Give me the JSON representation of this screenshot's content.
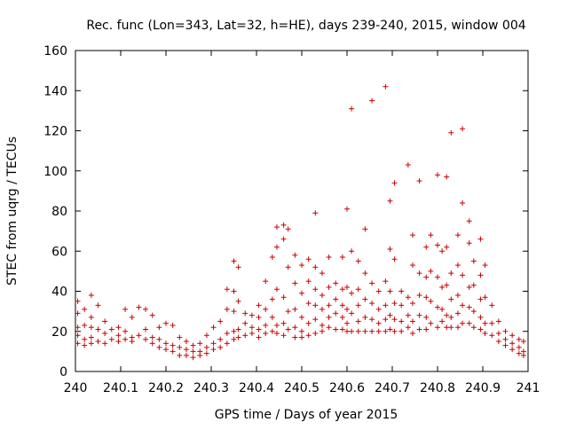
{
  "chart_data": {
    "type": "scatter",
    "title": "Rec. func (Lon=343, Lat=32, h=HE), days 239-240, 2015, window 004",
    "xlabel": "GPS time / Days of year 2015",
    "ylabel": "STEC from uqrg / TECUs",
    "xlim": [
      240,
      241
    ],
    "ylim": [
      0,
      160
    ],
    "xticks": [
      "240",
      "240.1",
      "240.2",
      "240.3",
      "240.4",
      "240.5",
      "240.6",
      "240.7",
      "240.8",
      "240.9",
      "241"
    ],
    "yticks": [
      "0",
      "20",
      "40",
      "60",
      "80",
      "100",
      "120",
      "140",
      "160"
    ],
    "grid": false,
    "marker": "plus",
    "color": "#cc0000",
    "series": [
      {
        "points": [
          [
            240.005,
            35
          ],
          [
            240.005,
            29
          ],
          [
            240.005,
            22
          ],
          [
            240.005,
            18
          ],
          [
            240.005,
            14
          ],
          [
            240.02,
            31
          ],
          [
            240.02,
            23
          ],
          [
            240.02,
            16
          ],
          [
            240.02,
            13
          ],
          [
            240.035,
            38
          ],
          [
            240.035,
            27
          ],
          [
            240.035,
            22
          ],
          [
            240.035,
            17
          ],
          [
            240.035,
            14
          ],
          [
            240.05,
            33
          ],
          [
            240.05,
            21
          ],
          [
            240.05,
            15
          ],
          [
            240.065,
            25
          ],
          [
            240.065,
            19
          ],
          [
            240.065,
            14
          ],
          [
            240.08,
            21
          ],
          [
            240.08,
            16
          ],
          [
            240.095,
            22
          ],
          [
            240.095,
            18
          ],
          [
            240.095,
            15
          ],
          [
            240.11,
            31
          ],
          [
            240.11,
            20
          ],
          [
            240.11,
            16
          ],
          [
            240.125,
            27
          ],
          [
            240.125,
            17
          ],
          [
            240.125,
            15
          ],
          [
            240.14,
            32
          ],
          [
            240.14,
            18
          ],
          [
            240.155,
            31
          ],
          [
            240.155,
            21
          ],
          [
            240.155,
            16
          ],
          [
            240.17,
            28
          ],
          [
            240.17,
            17
          ],
          [
            240.17,
            14
          ],
          [
            240.185,
            22
          ],
          [
            240.185,
            16
          ],
          [
            240.185,
            12
          ],
          [
            240.2,
            24
          ],
          [
            240.2,
            14
          ],
          [
            240.2,
            11
          ],
          [
            240.215,
            23
          ],
          [
            240.215,
            13
          ],
          [
            240.215,
            10
          ],
          [
            240.23,
            17
          ],
          [
            240.23,
            12
          ],
          [
            240.23,
            8
          ],
          [
            240.245,
            15
          ],
          [
            240.245,
            11
          ],
          [
            240.245,
            8
          ],
          [
            240.26,
            13
          ],
          [
            240.26,
            10
          ],
          [
            240.26,
            7
          ],
          [
            240.275,
            14
          ],
          [
            240.275,
            10
          ],
          [
            240.275,
            8
          ],
          [
            240.29,
            18
          ],
          [
            240.29,
            12
          ],
          [
            240.29,
            9
          ],
          [
            240.305,
            22
          ],
          [
            240.305,
            14
          ],
          [
            240.305,
            11
          ],
          [
            240.32,
            25
          ],
          [
            240.32,
            16
          ],
          [
            240.32,
            12
          ],
          [
            240.335,
            41
          ],
          [
            240.335,
            31
          ],
          [
            240.335,
            19
          ],
          [
            240.335,
            14
          ],
          [
            240.35,
            55
          ],
          [
            240.35,
            40
          ],
          [
            240.35,
            30
          ],
          [
            240.35,
            20
          ],
          [
            240.35,
            16
          ],
          [
            240.36,
            52
          ],
          [
            240.36,
            35
          ],
          [
            240.36,
            21
          ],
          [
            240.36,
            17
          ],
          [
            240.375,
            29
          ],
          [
            240.375,
            24
          ],
          [
            240.375,
            18
          ],
          [
            240.39,
            28
          ],
          [
            240.39,
            22
          ],
          [
            240.39,
            19
          ],
          [
            240.405,
            33
          ],
          [
            240.405,
            27
          ],
          [
            240.405,
            21
          ],
          [
            240.405,
            17
          ],
          [
            240.42,
            45
          ],
          [
            240.42,
            31
          ],
          [
            240.42,
            23
          ],
          [
            240.42,
            19
          ],
          [
            240.435,
            57
          ],
          [
            240.435,
            36
          ],
          [
            240.435,
            27
          ],
          [
            240.435,
            20
          ],
          [
            240.445,
            72
          ],
          [
            240.445,
            62
          ],
          [
            240.445,
            41
          ],
          [
            240.445,
            23
          ],
          [
            240.445,
            19
          ],
          [
            240.46,
            73
          ],
          [
            240.46,
            66
          ],
          [
            240.46,
            37
          ],
          [
            240.46,
            24
          ],
          [
            240.46,
            18
          ],
          [
            240.47,
            71
          ],
          [
            240.47,
            52
          ],
          [
            240.47,
            30
          ],
          [
            240.47,
            21
          ],
          [
            240.485,
            58
          ],
          [
            240.485,
            44
          ],
          [
            240.485,
            31
          ],
          [
            240.485,
            22
          ],
          [
            240.485,
            17
          ],
          [
            240.5,
            53
          ],
          [
            240.5,
            39
          ],
          [
            240.5,
            27
          ],
          [
            240.5,
            20
          ],
          [
            240.5,
            17
          ],
          [
            240.515,
            56
          ],
          [
            240.515,
            45
          ],
          [
            240.515,
            34
          ],
          [
            240.515,
            24
          ],
          [
            240.515,
            18
          ],
          [
            240.53,
            79
          ],
          [
            240.53,
            52
          ],
          [
            240.53,
            41
          ],
          [
            240.53,
            33
          ],
          [
            240.53,
            26
          ],
          [
            240.53,
            19
          ],
          [
            240.545,
            49
          ],
          [
            240.545,
            38
          ],
          [
            240.545,
            31
          ],
          [
            240.545,
            23
          ],
          [
            240.545,
            20
          ],
          [
            240.56,
            57
          ],
          [
            240.56,
            42
          ],
          [
            240.56,
            33
          ],
          [
            240.56,
            27
          ],
          [
            240.56,
            22
          ],
          [
            240.575,
            44
          ],
          [
            240.575,
            36
          ],
          [
            240.575,
            29
          ],
          [
            240.575,
            21
          ],
          [
            240.59,
            57
          ],
          [
            240.59,
            41
          ],
          [
            240.59,
            33
          ],
          [
            240.59,
            27
          ],
          [
            240.59,
            21
          ],
          [
            240.6,
            81
          ],
          [
            240.6,
            42
          ],
          [
            240.6,
            31
          ],
          [
            240.6,
            24
          ],
          [
            240.6,
            20
          ],
          [
            240.61,
            131
          ],
          [
            240.61,
            60
          ],
          [
            240.61,
            39
          ],
          [
            240.61,
            29
          ],
          [
            240.61,
            20
          ],
          [
            240.625,
            55
          ],
          [
            240.625,
            41
          ],
          [
            240.625,
            33
          ],
          [
            240.625,
            25
          ],
          [
            240.625,
            20
          ],
          [
            240.64,
            71
          ],
          [
            240.64,
            49
          ],
          [
            240.64,
            36
          ],
          [
            240.64,
            27
          ],
          [
            240.64,
            20
          ],
          [
            240.655,
            135
          ],
          [
            240.655,
            44
          ],
          [
            240.655,
            34
          ],
          [
            240.655,
            26
          ],
          [
            240.655,
            20
          ],
          [
            240.67,
            40
          ],
          [
            240.67,
            31
          ],
          [
            240.67,
            24
          ],
          [
            240.67,
            20
          ],
          [
            240.685,
            142
          ],
          [
            240.685,
            45
          ],
          [
            240.685,
            33
          ],
          [
            240.685,
            26
          ],
          [
            240.685,
            20
          ],
          [
            240.695,
            85
          ],
          [
            240.695,
            61
          ],
          [
            240.695,
            40
          ],
          [
            240.695,
            28
          ],
          [
            240.695,
            21
          ],
          [
            240.705,
            94
          ],
          [
            240.705,
            56
          ],
          [
            240.705,
            34
          ],
          [
            240.705,
            26
          ],
          [
            240.705,
            20
          ],
          [
            240.72,
            40
          ],
          [
            240.72,
            33
          ],
          [
            240.72,
            25
          ],
          [
            240.72,
            20
          ],
          [
            240.735,
            103
          ],
          [
            240.735,
            37
          ],
          [
            240.735,
            28
          ],
          [
            240.735,
            22
          ],
          [
            240.745,
            68
          ],
          [
            240.745,
            53
          ],
          [
            240.745,
            34
          ],
          [
            240.745,
            25
          ],
          [
            240.745,
            19
          ],
          [
            240.76,
            95
          ],
          [
            240.76,
            49
          ],
          [
            240.76,
            38
          ],
          [
            240.76,
            28
          ],
          [
            240.76,
            21
          ],
          [
            240.775,
            62
          ],
          [
            240.775,
            47
          ],
          [
            240.775,
            37
          ],
          [
            240.775,
            27
          ],
          [
            240.775,
            21
          ],
          [
            240.785,
            68
          ],
          [
            240.785,
            50
          ],
          [
            240.785,
            35
          ],
          [
            240.785,
            24
          ],
          [
            240.8,
            98
          ],
          [
            240.8,
            63
          ],
          [
            240.8,
            47
          ],
          [
            240.8,
            32
          ],
          [
            240.8,
            22
          ],
          [
            240.81,
            60
          ],
          [
            240.81,
            42
          ],
          [
            240.81,
            31
          ],
          [
            240.81,
            25
          ],
          [
            240.82,
            97
          ],
          [
            240.82,
            62
          ],
          [
            240.82,
            43
          ],
          [
            240.82,
            28
          ],
          [
            240.82,
            22
          ],
          [
            240.83,
            119
          ],
          [
            240.83,
            49
          ],
          [
            240.83,
            36
          ],
          [
            240.83,
            27
          ],
          [
            240.83,
            22
          ],
          [
            240.845,
            68
          ],
          [
            240.845,
            53
          ],
          [
            240.845,
            38
          ],
          [
            240.845,
            29
          ],
          [
            240.845,
            22
          ],
          [
            240.855,
            121
          ],
          [
            240.855,
            84
          ],
          [
            240.855,
            48
          ],
          [
            240.855,
            33
          ],
          [
            240.855,
            24
          ],
          [
            240.87,
            75
          ],
          [
            240.87,
            64
          ],
          [
            240.87,
            42
          ],
          [
            240.87,
            32
          ],
          [
            240.87,
            24
          ],
          [
            240.88,
            55
          ],
          [
            240.88,
            43
          ],
          [
            240.88,
            30
          ],
          [
            240.88,
            22
          ],
          [
            240.895,
            66
          ],
          [
            240.895,
            48
          ],
          [
            240.895,
            36
          ],
          [
            240.895,
            27
          ],
          [
            240.895,
            21
          ],
          [
            240.905,
            53
          ],
          [
            240.905,
            37
          ],
          [
            240.905,
            24
          ],
          [
            240.905,
            19
          ],
          [
            240.92,
            33
          ],
          [
            240.92,
            24
          ],
          [
            240.92,
            18
          ],
          [
            240.935,
            25
          ],
          [
            240.935,
            19
          ],
          [
            240.935,
            15
          ],
          [
            240.95,
            20
          ],
          [
            240.95,
            16
          ],
          [
            240.95,
            13
          ],
          [
            240.965,
            18
          ],
          [
            240.965,
            14
          ],
          [
            240.965,
            11
          ],
          [
            240.98,
            16
          ],
          [
            240.98,
            12
          ],
          [
            240.98,
            9
          ],
          [
            240.99,
            15
          ],
          [
            240.99,
            10
          ],
          [
            240.99,
            8
          ]
        ]
      }
    ]
  }
}
